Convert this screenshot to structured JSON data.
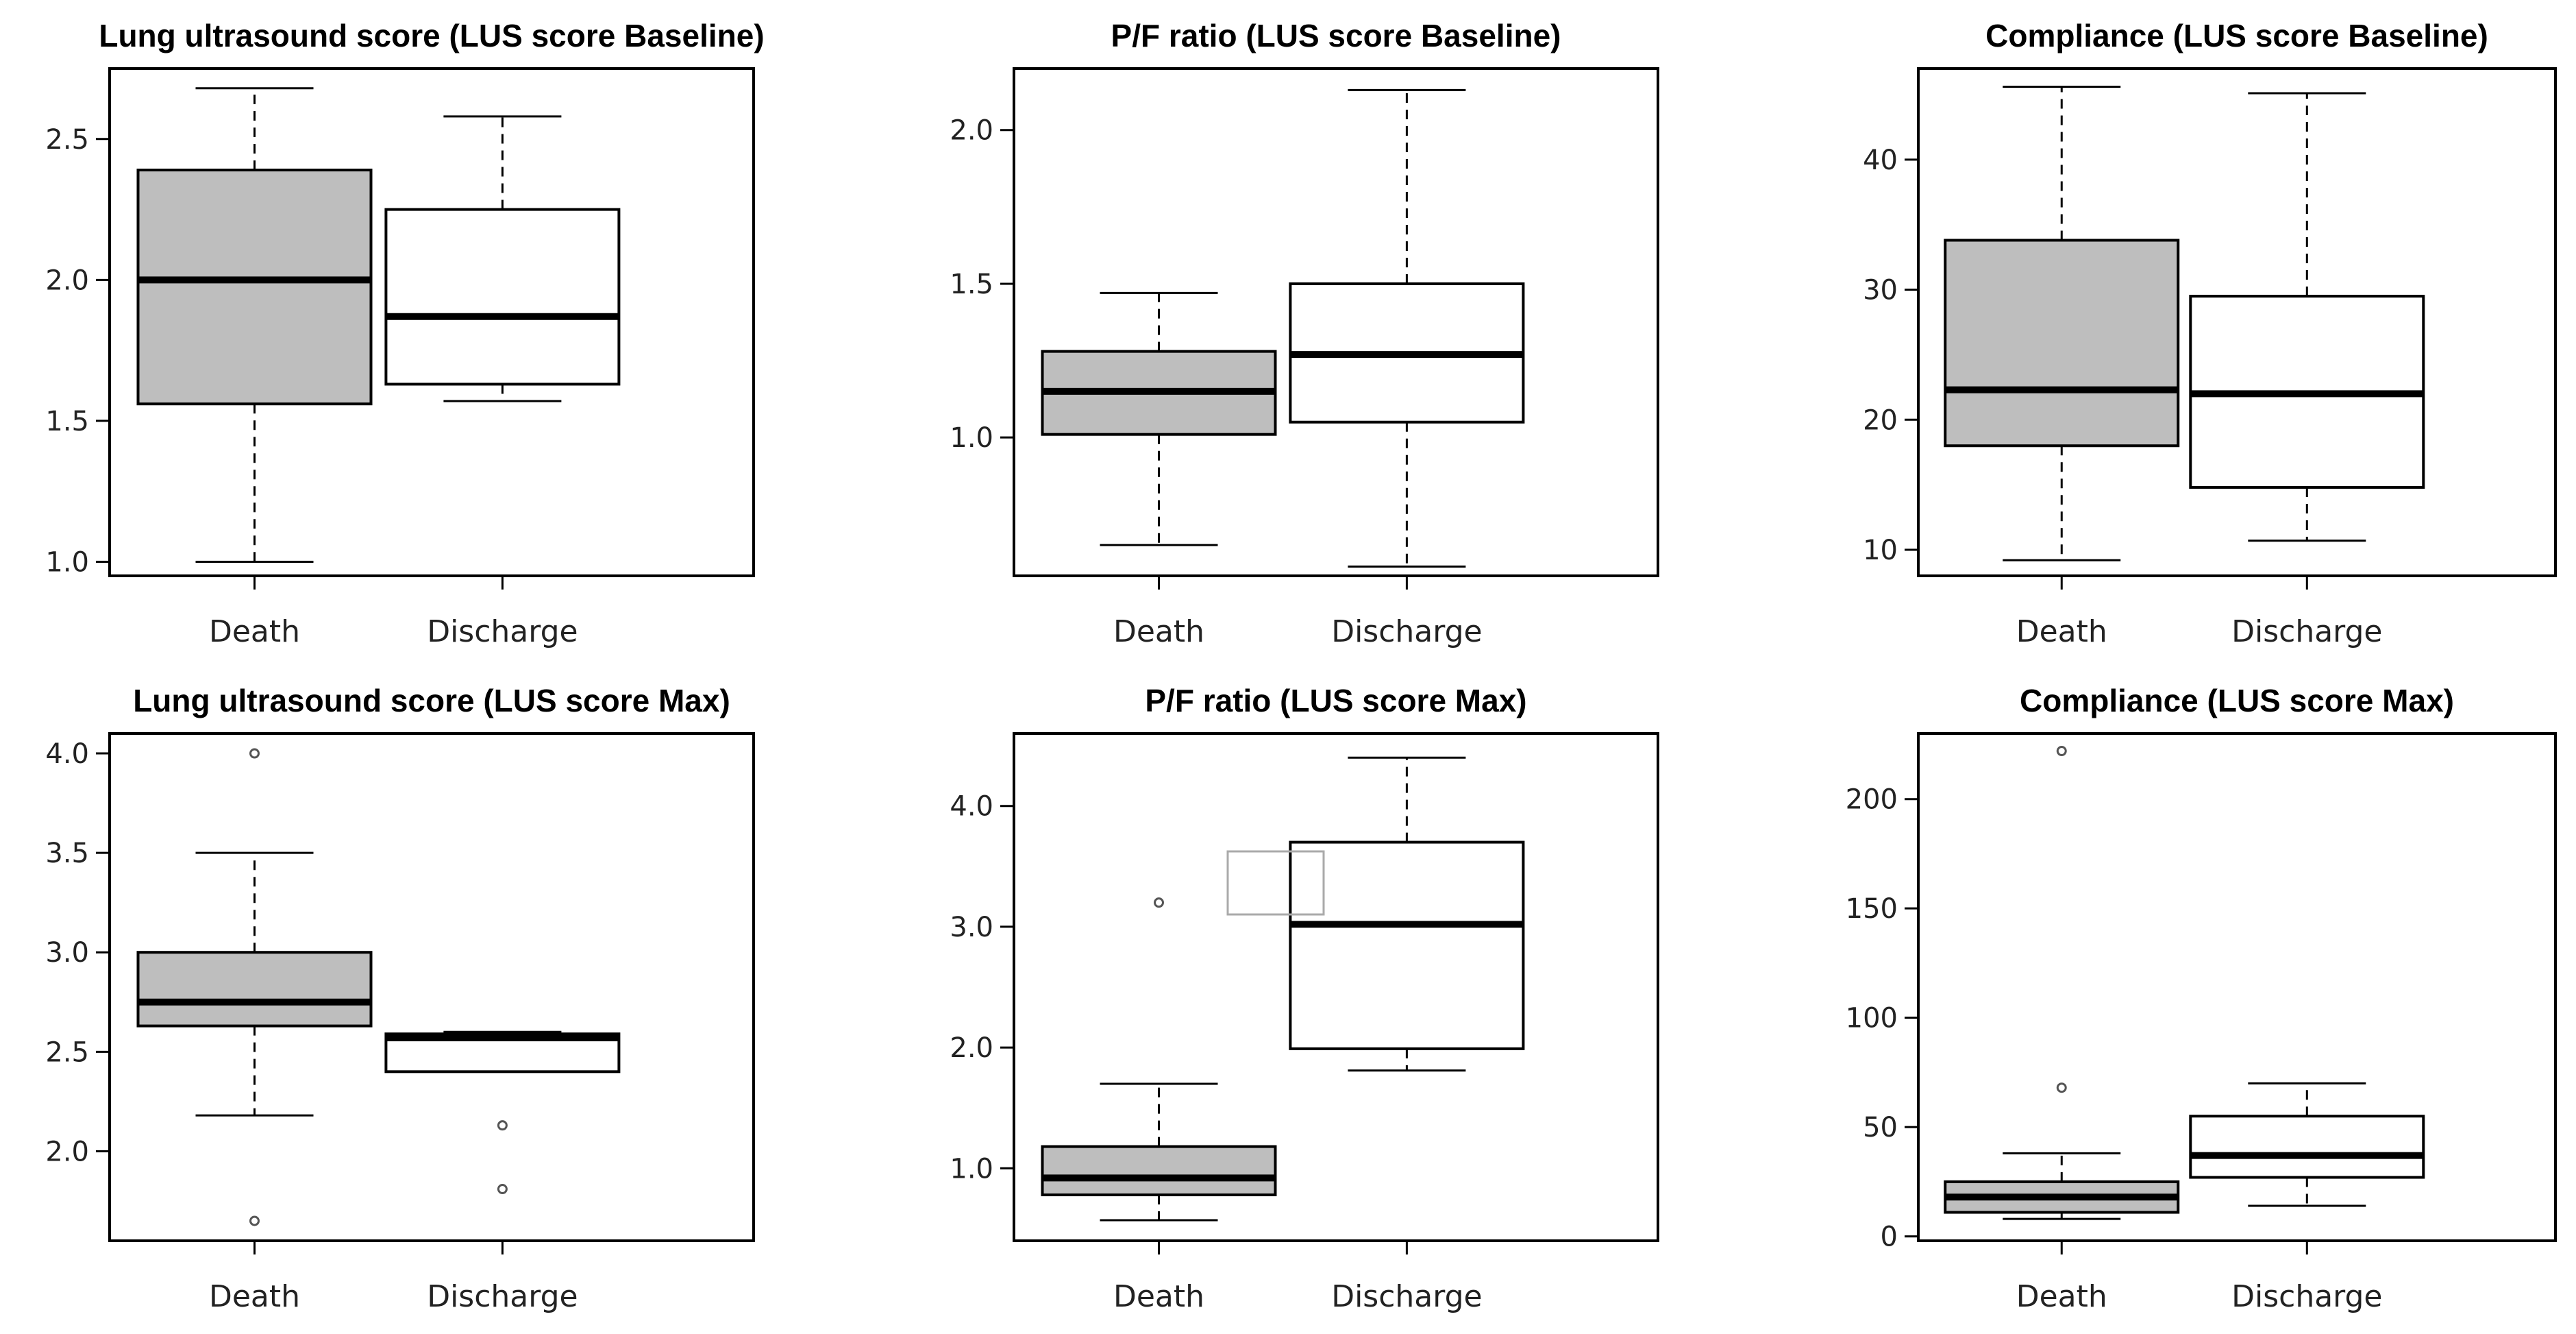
{
  "chart_data": [
    {
      "type": "box",
      "title": "Lung ultrasound score (LUS score Baseline)",
      "ylim": [
        0.95,
        2.75
      ],
      "ticks": [
        1.0,
        1.5,
        2.0,
        2.5
      ],
      "tick_labels": [
        "1.0",
        "1.5",
        "2.0",
        "2.5"
      ],
      "categories": [
        "Death",
        "Discharge"
      ],
      "boxes": [
        {
          "name": "Death",
          "fill": "#bebebe",
          "min": 1.0,
          "q1": 1.56,
          "median": 2.0,
          "q3": 2.39,
          "max": 2.68,
          "outliers": []
        },
        {
          "name": "Discharge",
          "fill": "#ffffff",
          "min": 1.57,
          "q1": 1.63,
          "median": 1.87,
          "q3": 2.25,
          "max": 2.58,
          "outliers": []
        }
      ]
    },
    {
      "type": "box",
      "title": "P/F ratio (LUS score Baseline)",
      "ylim": [
        0.55,
        2.2
      ],
      "ticks": [
        1.0,
        1.5,
        2.0
      ],
      "tick_labels": [
        "1.0",
        "1.5",
        "2.0"
      ],
      "categories": [
        "Death",
        "Discharge"
      ],
      "boxes": [
        {
          "name": "Death",
          "fill": "#bebebe",
          "min": 0.65,
          "q1": 1.01,
          "median": 1.15,
          "q3": 1.28,
          "max": 1.47,
          "outliers": []
        },
        {
          "name": "Discharge",
          "fill": "#ffffff",
          "min": 0.58,
          "q1": 1.05,
          "median": 1.27,
          "q3": 1.5,
          "max": 2.13,
          "outliers": []
        }
      ]
    },
    {
      "type": "box",
      "title": "Compliance (LUS score Baseline)",
      "ylim": [
        8,
        47
      ],
      "ticks": [
        10,
        20,
        30,
        40
      ],
      "tick_labels": [
        "10",
        "20",
        "30",
        "40"
      ],
      "categories": [
        "Death",
        "Discharge"
      ],
      "boxes": [
        {
          "name": "Death",
          "fill": "#bebebe",
          "min": 9.2,
          "q1": 18.0,
          "median": 22.3,
          "q3": 33.8,
          "max": 45.6,
          "outliers": []
        },
        {
          "name": "Discharge",
          "fill": "#ffffff",
          "min": 10.7,
          "q1": 14.8,
          "median": 22.0,
          "q3": 29.5,
          "max": 45.1,
          "outliers": []
        }
      ]
    },
    {
      "type": "box",
      "title": "Lung ultrasound score (LUS score Max)",
      "ylim": [
        1.55,
        4.1
      ],
      "ticks": [
        2.0,
        2.5,
        3.0,
        3.5,
        4.0
      ],
      "tick_labels": [
        "2.0",
        "2.5",
        "3.0",
        "3.5",
        "4.0"
      ],
      "categories": [
        "Death",
        "Discharge"
      ],
      "boxes": [
        {
          "name": "Death",
          "fill": "#bebebe",
          "min": 2.18,
          "q1": 2.63,
          "median": 2.75,
          "q3": 3.0,
          "max": 3.5,
          "outliers": [
            4.0,
            1.65
          ]
        },
        {
          "name": "Discharge",
          "fill": "#ffffff",
          "min": 2.4,
          "q1": 2.4,
          "median": 2.57,
          "q3": 2.59,
          "max": 2.6,
          "outliers": [
            2.13,
            1.81
          ]
        }
      ]
    },
    {
      "type": "box",
      "title": "P/F ratio (LUS score Max)",
      "ylim": [
        0.4,
        4.6
      ],
      "ticks": [
        1.0,
        2.0,
        3.0,
        4.0
      ],
      "tick_labels": [
        "1.0",
        "2.0",
        "3.0",
        "4.0"
      ],
      "categories": [
        "Death",
        "Discharge"
      ],
      "boxes": [
        {
          "name": "Death",
          "fill": "#bebebe",
          "min": 0.57,
          "q1": 0.78,
          "median": 0.92,
          "q3": 1.18,
          "max": 1.7,
          "outliers": [
            3.2
          ]
        },
        {
          "name": "Discharge",
          "fill": "#ffffff",
          "min": 1.81,
          "q1": 1.99,
          "median": 3.02,
          "q3": 3.7,
          "max": 4.4,
          "outliers": []
        }
      ]
    },
    {
      "type": "box",
      "title": "Compliance (LUS score Max)",
      "ylim": [
        -2,
        230
      ],
      "ticks": [
        0,
        50,
        100,
        150,
        200
      ],
      "tick_labels": [
        "0",
        "50",
        "100",
        "150",
        "200"
      ],
      "categories": [
        "Death",
        "Discharge"
      ],
      "boxes": [
        {
          "name": "Death",
          "fill": "#bebebe",
          "min": 8,
          "q1": 11,
          "median": 18,
          "q3": 25,
          "max": 38,
          "outliers": [
            222,
            68
          ]
        },
        {
          "name": "Discharge",
          "fill": "#ffffff",
          "min": 14,
          "q1": 27,
          "median": 37,
          "q3": 55,
          "max": 70,
          "outliers": []
        }
      ]
    }
  ]
}
